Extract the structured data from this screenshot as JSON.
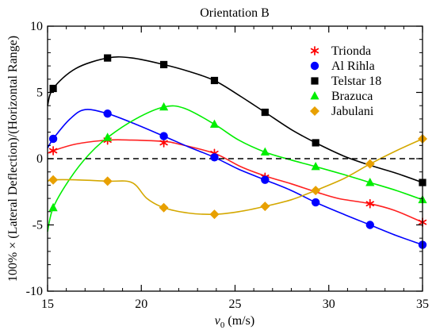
{
  "chart_data": {
    "type": "line",
    "title": "Orientation B",
    "xlabel_main": "v",
    "xlabel_sub": "0",
    "xlabel_unit": " (m/s)",
    "ylabel": "100% × (Lateral Deflection)/(Horizontal Range)",
    "xlim": [
      15,
      35
    ],
    "ylim": [
      -10,
      10
    ],
    "xticks": [
      15,
      20,
      25,
      30,
      35
    ],
    "yticks": [
      -10,
      -5,
      0,
      5,
      10
    ],
    "reference_line": {
      "y": 0,
      "style": "dashed"
    },
    "legend_position": "top-right",
    "series": [
      {
        "name": "Trionda",
        "color": "#ff0000",
        "line_color": "#ff2020",
        "marker": "asterisk",
        "points": [
          [
            15.3,
            0.6
          ],
          [
            18.2,
            1.4
          ],
          [
            21.2,
            1.2
          ],
          [
            23.9,
            0.4
          ],
          [
            26.6,
            -1.4
          ],
          [
            32.2,
            -3.4
          ],
          [
            35.0,
            -4.8
          ]
        ],
        "curve": [
          [
            15.0,
            0.4
          ],
          [
            15.3,
            0.6
          ],
          [
            16.5,
            1.1
          ],
          [
            18.2,
            1.4
          ],
          [
            19.5,
            1.4
          ],
          [
            21.2,
            1.3
          ],
          [
            22.0,
            1.1
          ],
          [
            23.9,
            0.4
          ],
          [
            25.3,
            -0.6
          ],
          [
            26.6,
            -1.3
          ],
          [
            28.0,
            -1.9
          ],
          [
            29.3,
            -2.5
          ],
          [
            30.5,
            -3.0
          ],
          [
            32.2,
            -3.4
          ],
          [
            33.5,
            -3.9
          ],
          [
            35.0,
            -4.8
          ]
        ]
      },
      {
        "name": "Al Rihla",
        "color": "#0000ff",
        "line_color": "#0000ff",
        "marker": "circle",
        "points": [
          [
            15.3,
            1.5
          ],
          [
            18.2,
            3.4
          ],
          [
            21.2,
            1.7
          ],
          [
            23.9,
            0.1
          ],
          [
            26.6,
            -1.6
          ],
          [
            29.3,
            -3.3
          ],
          [
            32.2,
            -5.0
          ],
          [
            35.0,
            -6.5
          ]
        ],
        "curve": [
          [
            15.0,
            0.8
          ],
          [
            15.3,
            1.5
          ],
          [
            16.2,
            3.0
          ],
          [
            17.0,
            3.7
          ],
          [
            18.2,
            3.4
          ],
          [
            19.7,
            2.6
          ],
          [
            21.2,
            1.7
          ],
          [
            22.5,
            0.9
          ],
          [
            23.9,
            0.1
          ],
          [
            25.2,
            -0.8
          ],
          [
            26.6,
            -1.6
          ],
          [
            28.0,
            -2.4
          ],
          [
            29.3,
            -3.3
          ],
          [
            30.8,
            -4.2
          ],
          [
            32.2,
            -5.0
          ],
          [
            33.6,
            -5.8
          ],
          [
            35.0,
            -6.5
          ]
        ]
      },
      {
        "name": "Telstar 18",
        "color": "#000000",
        "line_color": "#000000",
        "marker": "square",
        "points": [
          [
            15.3,
            5.3
          ],
          [
            18.2,
            7.6
          ],
          [
            21.2,
            7.1
          ],
          [
            23.9,
            5.9
          ],
          [
            26.6,
            3.5
          ],
          [
            29.3,
            1.2
          ],
          [
            35.0,
            -1.8
          ]
        ],
        "curve": [
          [
            15.0,
            4.0
          ],
          [
            15.3,
            5.3
          ],
          [
            16.5,
            6.8
          ],
          [
            18.2,
            7.6
          ],
          [
            19.5,
            7.6
          ],
          [
            21.2,
            7.1
          ],
          [
            22.5,
            6.6
          ],
          [
            23.9,
            5.9
          ],
          [
            25.3,
            4.7
          ],
          [
            26.6,
            3.5
          ],
          [
            28.0,
            2.2
          ],
          [
            29.3,
            1.2
          ],
          [
            30.8,
            0.2
          ],
          [
            32.2,
            -0.5
          ],
          [
            33.6,
            -1.1
          ],
          [
            35.0,
            -1.8
          ]
        ]
      },
      {
        "name": "Brazuca",
        "color": "#00ee00",
        "line_color": "#00ee00",
        "marker": "triangle",
        "points": [
          [
            15.3,
            -3.7
          ],
          [
            18.2,
            1.6
          ],
          [
            21.2,
            3.9
          ],
          [
            23.9,
            2.6
          ],
          [
            26.6,
            0.5
          ],
          [
            29.3,
            -0.6
          ],
          [
            32.2,
            -1.8
          ],
          [
            35.0,
            -3.1
          ]
        ],
        "curve": [
          [
            15.0,
            -5.5
          ],
          [
            15.3,
            -3.7
          ],
          [
            16.2,
            -1.5
          ],
          [
            17.2,
            0.3
          ],
          [
            18.2,
            1.6
          ],
          [
            19.7,
            3.0
          ],
          [
            21.2,
            3.9
          ],
          [
            22.3,
            3.8
          ],
          [
            23.9,
            2.6
          ],
          [
            25.2,
            1.4
          ],
          [
            26.6,
            0.5
          ],
          [
            28.0,
            -0.1
          ],
          [
            29.3,
            -0.6
          ],
          [
            30.8,
            -1.2
          ],
          [
            32.2,
            -1.8
          ],
          [
            33.6,
            -2.4
          ],
          [
            35.0,
            -3.1
          ]
        ]
      },
      {
        "name": "Jabulani",
        "color": "#e8a000",
        "line_color": "#d4a800",
        "marker": "diamond",
        "points": [
          [
            15.3,
            -1.6
          ],
          [
            18.2,
            -1.7
          ],
          [
            21.2,
            -3.7
          ],
          [
            23.9,
            -4.2
          ],
          [
            26.6,
            -3.6
          ],
          [
            29.3,
            -2.4
          ],
          [
            32.2,
            -0.4
          ],
          [
            35.0,
            1.5
          ]
        ],
        "curve": [
          [
            15.0,
            -1.7
          ],
          [
            15.3,
            -1.6
          ],
          [
            16.5,
            -1.6
          ],
          [
            18.2,
            -1.7
          ],
          [
            19.5,
            -1.8
          ],
          [
            20.3,
            -3.0
          ],
          [
            21.2,
            -3.7
          ],
          [
            22.5,
            -4.1
          ],
          [
            23.9,
            -4.2
          ],
          [
            25.2,
            -4.0
          ],
          [
            26.6,
            -3.6
          ],
          [
            28.0,
            -3.1
          ],
          [
            29.3,
            -2.4
          ],
          [
            30.8,
            -1.5
          ],
          [
            32.2,
            -0.4
          ],
          [
            33.6,
            0.6
          ],
          [
            35.0,
            1.5
          ]
        ]
      }
    ]
  }
}
